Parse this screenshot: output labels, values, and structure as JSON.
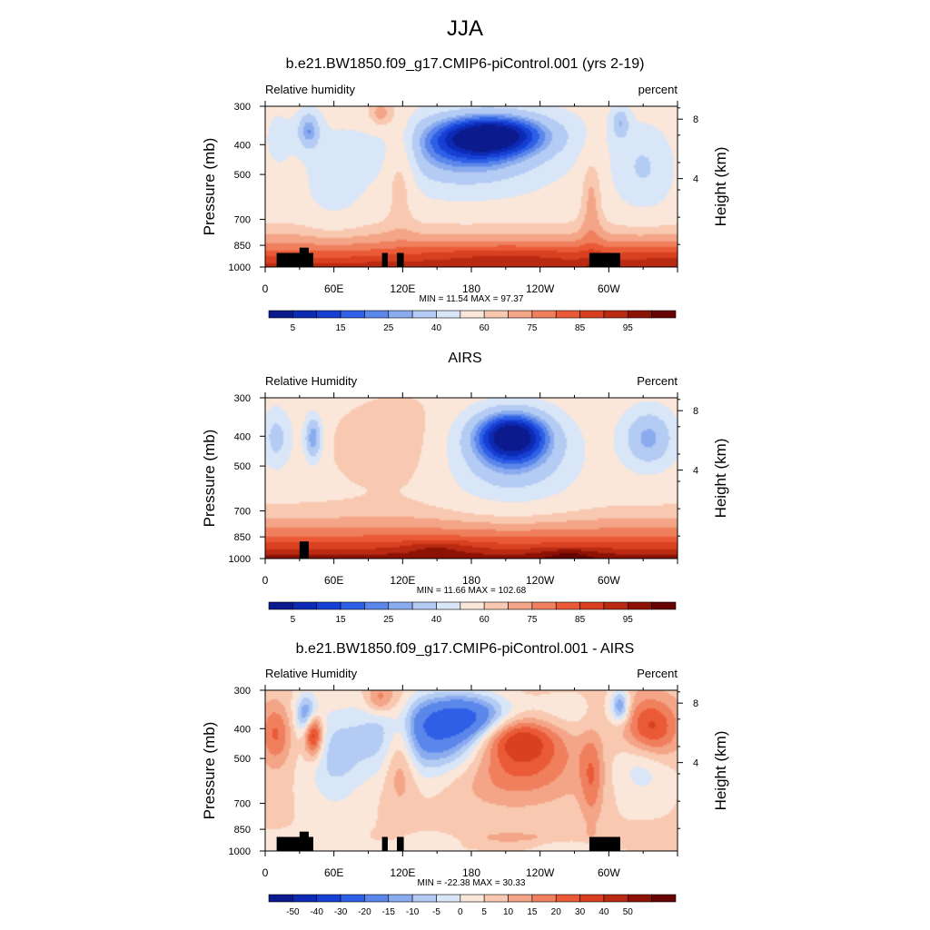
{
  "figure_title": "JJA",
  "colormaps": {
    "abs_colors": [
      "#0b1a8c",
      "#0d2ab5",
      "#1640d4",
      "#2e5fe6",
      "#5b86ea",
      "#8aacef",
      "#b4cbf3",
      "#d8e6f8",
      "#fbe6da",
      "#f8c9b0",
      "#f4a487",
      "#f07f5e",
      "#ea5a36",
      "#d8401f",
      "#b82a12",
      "#8c1206",
      "#660403"
    ],
    "abs_labels": [
      "5",
      "15",
      "25",
      "40",
      "60",
      "75",
      "85",
      "95"
    ],
    "diff_colors": [
      "#0b1a8c",
      "#0d2ab5",
      "#1640d4",
      "#2e5fe6",
      "#5b86ea",
      "#8aacef",
      "#b4cbf3",
      "#d8e6f8",
      "#fbe6da",
      "#f8c9b0",
      "#f4a487",
      "#f07f5e",
      "#ea5a36",
      "#d8401f",
      "#b82a12",
      "#8c1206",
      "#660403"
    ],
    "diff_labels": [
      "-50",
      "-40",
      "-30",
      "-20",
      "-15",
      "-10",
      "-5",
      "0",
      "5",
      "10",
      "15",
      "20",
      "30",
      "40",
      "50"
    ]
  },
  "axes": {
    "x_ticks": [
      "0",
      "60E",
      "120E",
      "180",
      "120W",
      "60W"
    ],
    "y_ticks": [
      "300",
      "400",
      "500",
      "700",
      "850",
      "1000"
    ],
    "y_label": "Pressure (mb)",
    "y2_label": "Height (km)",
    "y2_ticks": [
      "8",
      "4"
    ]
  },
  "panels": [
    {
      "title": "b.e21.BW1850.f09_g17.CMIP6-piControl.001 (yrs 2-19)",
      "left_label": "Relative humidity",
      "right_label": "percent",
      "stats": "MIN =  11.54  MAX =  97.37",
      "colormap": "abs"
    },
    {
      "title": "AIRS",
      "left_label": "Relative Humidity",
      "right_label": "Percent",
      "stats": "MIN =  11.66  MAX = 102.68",
      "colormap": "abs"
    },
    {
      "title": "b.e21.BW1850.f09_g17.CMIP6-piControl.001 - AIRS",
      "left_label": "Relative Humidity",
      "right_label": "Percent",
      "stats": "MIN = -22.38  MAX =  30.33",
      "colormap": "diff"
    }
  ],
  "chart_data": [
    {
      "type": "heatmap",
      "title": "b.e21.BW1850.f09_g17.CMIP6-piControl.001 (yrs 2-19)",
      "xlabel": "",
      "ylabel": "Pressure (mb)",
      "y2label": "Height (km)",
      "units": "percent",
      "variable": "Relative humidity",
      "x_range_lon": [
        0,
        360
      ],
      "y_range_mb": [
        1000,
        300
      ],
      "min": 11.54,
      "max": 97.37,
      "features": [
        {
          "name": "dry",
          "lon": 38,
          "p": 400,
          "value": 28
        },
        {
          "name": "dry",
          "lon": 200,
          "p": 420,
          "value": 12
        },
        {
          "name": "dry",
          "lon": 310,
          "p": 380,
          "value": 35
        },
        {
          "name": "moist",
          "lon": 115,
          "p": 500,
          "value": 78
        },
        {
          "name": "moist",
          "lon": 100,
          "p": 320,
          "value": 75
        },
        {
          "name": "moist",
          "lon": 210,
          "p": 930,
          "value": 95
        },
        {
          "name": "moist",
          "lon": 350,
          "p": 930,
          "value": 92
        }
      ]
    },
    {
      "type": "heatmap",
      "title": "AIRS",
      "ylabel": "Pressure (mb)",
      "y2label": "Height (km)",
      "units": "Percent",
      "variable": "Relative Humidity",
      "x_range_lon": [
        0,
        360
      ],
      "y_range_mb": [
        1000,
        300
      ],
      "min": 11.66,
      "max": 102.68,
      "features": [
        {
          "name": "dry",
          "lon": 40,
          "p": 430,
          "value": 25
        },
        {
          "name": "dry",
          "lon": 215,
          "p": 450,
          "value": 14
        },
        {
          "name": "dry",
          "lon": 335,
          "p": 460,
          "value": 28
        },
        {
          "name": "moist",
          "lon": 150,
          "p": 940,
          "value": 97
        },
        {
          "name": "moist",
          "lon": 265,
          "p": 960,
          "value": 96
        }
      ]
    },
    {
      "type": "heatmap",
      "title": "b.e21.BW1850.f09_g17.CMIP6-piControl.001 - AIRS",
      "ylabel": "Pressure (mb)",
      "y2label": "Height (km)",
      "units": "Percent",
      "variable": "Relative Humidity",
      "x_range_lon": [
        0,
        360
      ],
      "y_range_mb": [
        1000,
        300
      ],
      "min": -22.38,
      "max": 30.33,
      "features": [
        {
          "name": "neg",
          "lon": 70,
          "p": 370,
          "value": -20
        },
        {
          "name": "neg",
          "lon": 20,
          "p": 420,
          "value": -12
        },
        {
          "name": "neg",
          "lon": 305,
          "p": 360,
          "value": -12
        },
        {
          "name": "pos",
          "lon": 115,
          "p": 520,
          "value": 28
        },
        {
          "name": "pos",
          "lon": 240,
          "p": 800,
          "value": 22
        },
        {
          "name": "pos",
          "lon": 340,
          "p": 600,
          "value": 28
        }
      ]
    }
  ]
}
